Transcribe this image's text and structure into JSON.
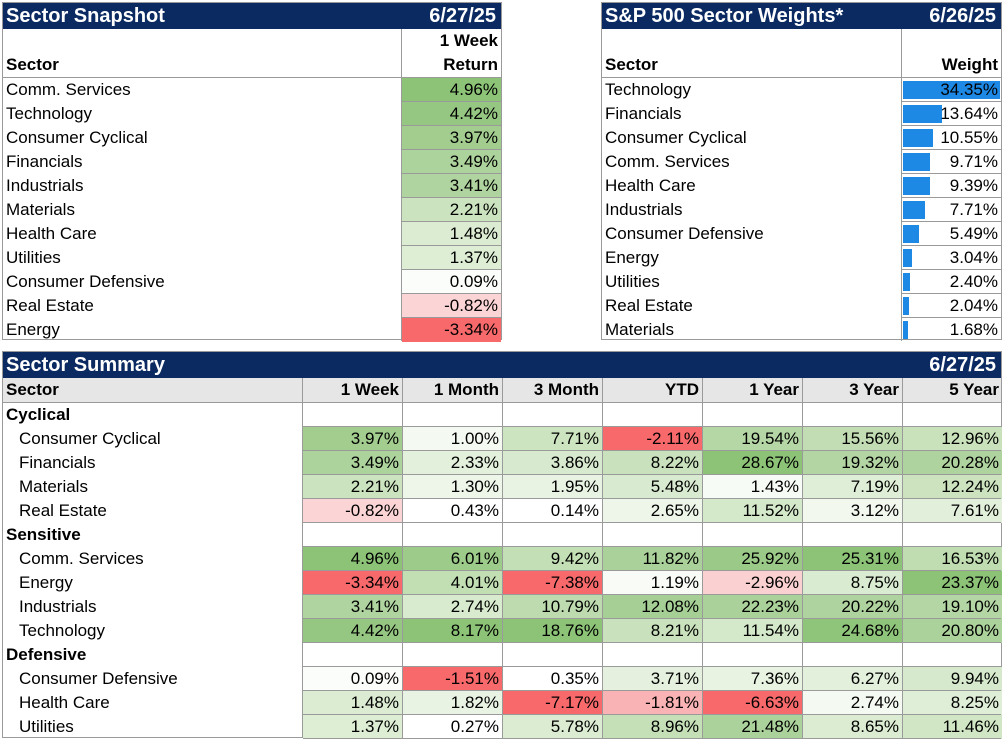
{
  "snapshot": {
    "title": "Sector Snapshot",
    "date": "6/27/25",
    "col_sector": "Sector",
    "col_return_line1": "1 Week",
    "col_return_line2": "Return",
    "rows": [
      {
        "sector": "Comm. Services",
        "value": "4.96%",
        "bg": "#8cc377"
      },
      {
        "sector": "Technology",
        "value": "4.42%",
        "bg": "#96c782"
      },
      {
        "sector": "Consumer Cyclical",
        "value": "3.97%",
        "bg": "#a2cd8f"
      },
      {
        "sector": "Financials",
        "value": "3.49%",
        "bg": "#add39c"
      },
      {
        "sector": "Industrials",
        "value": "3.41%",
        "bg": "#b0d49f"
      },
      {
        "sector": "Materials",
        "value": "2.21%",
        "bg": "#cbe3be"
      },
      {
        "sector": "Health Care",
        "value": "1.48%",
        "bg": "#dcecd3"
      },
      {
        "sector": "Utilities",
        "value": "1.37%",
        "bg": "#deeed5"
      },
      {
        "sector": "Consumer Defensive",
        "value": "0.09%",
        "bg": "#fbfdfa"
      },
      {
        "sector": "Real Estate",
        "value": "-0.82%",
        "bg": "#fbd5d5"
      },
      {
        "sector": "Energy",
        "value": "-3.34%",
        "bg": "#f8696b"
      }
    ]
  },
  "weights": {
    "title": "S&P 500 Sector Weights*",
    "date": "6/26/25",
    "col_sector": "Sector",
    "col_weight": "Weight",
    "bar_color": "#1e88e5",
    "rows": [
      {
        "sector": "Technology",
        "label": "34.35%",
        "value": 34.35
      },
      {
        "sector": "Financials",
        "label": "13.64%",
        "value": 13.64
      },
      {
        "sector": "Consumer Cyclical",
        "label": "10.55%",
        "value": 10.55
      },
      {
        "sector": "Comm. Services",
        "label": "9.71%",
        "value": 9.71
      },
      {
        "sector": "Health Care",
        "label": "9.39%",
        "value": 9.39
      },
      {
        "sector": "Industrials",
        "label": "7.71%",
        "value": 7.71
      },
      {
        "sector": "Consumer Defensive",
        "label": "5.49%",
        "value": 5.49
      },
      {
        "sector": "Energy",
        "label": "3.04%",
        "value": 3.04
      },
      {
        "sector": "Utilities",
        "label": "2.40%",
        "value": 2.4
      },
      {
        "sector": "Real Estate",
        "label": "2.04%",
        "value": 2.04
      },
      {
        "sector": "Materials",
        "label": "1.68%",
        "value": 1.68
      }
    ]
  },
  "summary": {
    "title": "Sector Summary",
    "date": "6/27/25",
    "columns": [
      "Sector",
      "1 Week",
      "1 Month",
      "3 Month",
      "YTD",
      "1 Year",
      "3 Year",
      "5 Year"
    ],
    "groups": [
      {
        "name": "Cyclical",
        "rows": [
          {
            "sector": "Consumer Cyclical",
            "values": [
              "3.97%",
              "1.00%",
              "7.71%",
              "-2.11%",
              "19.54%",
              "15.56%",
              "12.96%"
            ],
            "colors": [
              "#a2cd8f",
              "#f4f9f1",
              "#cde4c1",
              "#f8696b",
              "#b5d7a5",
              "#c2dcb4",
              "#cae2bc"
            ]
          },
          {
            "sector": "Financials",
            "values": [
              "3.49%",
              "2.33%",
              "3.86%",
              "8.22%",
              "28.67%",
              "19.32%",
              "20.28%"
            ],
            "colors": [
              "#add39c",
              "#e3f0dc",
              "#d7e9ce",
              "#c9e1bc",
              "#8cc377",
              "#b3d5a3",
              "#afd39e"
            ]
          },
          {
            "sector": "Materials",
            "values": [
              "2.21%",
              "1.30%",
              "1.95%",
              "5.48%",
              "1.43%",
              "7.19%",
              "12.24%"
            ],
            "colors": [
              "#cbe3be",
              "#eef6ea",
              "#e9f3e4",
              "#d8eacf",
              "#f7fbf5",
              "#dfeed6",
              "#cde3c0"
            ]
          },
          {
            "sector": "Real Estate",
            "values": [
              "-0.82%",
              "0.43%",
              "0.14%",
              "2.65%",
              "11.52%",
              "3.12%",
              "7.61%"
            ],
            "colors": [
              "#fbd5d5",
              "#ffffff",
              "#ffffff",
              "#eef6ea",
              "#d4e8ca",
              "#f2f8ee",
              "#e2efda"
            ]
          }
        ]
      },
      {
        "name": "Sensitive",
        "rows": [
          {
            "sector": "Comm. Services",
            "values": [
              "4.96%",
              "6.01%",
              "9.42%",
              "11.82%",
              "25.92%",
              "25.31%",
              "16.53%"
            ],
            "colors": [
              "#8cc377",
              "#9ccb8a",
              "#c3dfb5",
              "#aad19a",
              "#9bca88",
              "#8cc377",
              "#bfddb0"
            ]
          },
          {
            "sector": "Energy",
            "values": [
              "-3.34%",
              "4.01%",
              "-7.38%",
              "1.19%",
              "-2.96%",
              "8.75%",
              "23.37%"
            ],
            "colors": [
              "#f8696b",
              "#c2dfb4",
              "#f8696b",
              "#f8fbf6",
              "#fbd0d0",
              "#d9ebd0",
              "#8cc377"
            ]
          },
          {
            "sector": "Industrials",
            "values": [
              "3.41%",
              "2.74%",
              "10.79%",
              "12.08%",
              "22.23%",
              "20.22%",
              "19.10%"
            ],
            "colors": [
              "#b0d49f",
              "#d8ebcf",
              "#bddbaf",
              "#a6cf96",
              "#aad19a",
              "#afd39e",
              "#b4d6a4"
            ]
          },
          {
            "sector": "Technology",
            "values": [
              "4.42%",
              "8.17%",
              "18.76%",
              "8.21%",
              "11.54%",
              "24.68%",
              "20.80%"
            ],
            "colors": [
              "#96c782",
              "#8cc377",
              "#8cc377",
              "#c9e1bc",
              "#d4e8ca",
              "#8fc47b",
              "#acd29b"
            ]
          }
        ]
      },
      {
        "name": "Defensive",
        "rows": [
          {
            "sector": "Consumer Defensive",
            "values": [
              "0.09%",
              "-1.51%",
              "0.35%",
              "3.71%",
              "7.36%",
              "6.27%",
              "9.94%"
            ],
            "colors": [
              "#fbfdfa",
              "#f8696b",
              "#ffffff",
              "#e5f1de",
              "#e8f3e2",
              "#e3f0dc",
              "#d6e9cc"
            ]
          },
          {
            "sector": "Health Care",
            "values": [
              "1.48%",
              "1.82%",
              "-7.17%",
              "-1.81%",
              "-6.63%",
              "2.74%",
              "8.25%"
            ],
            "colors": [
              "#dcecd3",
              "#e9f3e4",
              "#f8696b",
              "#fab3b4",
              "#f8696b",
              "#f4f9f1",
              "#dfeed6"
            ]
          },
          {
            "sector": "Utilities",
            "values": [
              "1.37%",
              "0.27%",
              "5.78%",
              "8.96%",
              "21.48%",
              "8.65%",
              "11.46%"
            ],
            "colors": [
              "#deeed5",
              "#ffffff",
              "#dbecd2",
              "#c5dfb7",
              "#acd29b",
              "#dbecd2",
              "#d0e6c4"
            ]
          }
        ]
      }
    ]
  }
}
